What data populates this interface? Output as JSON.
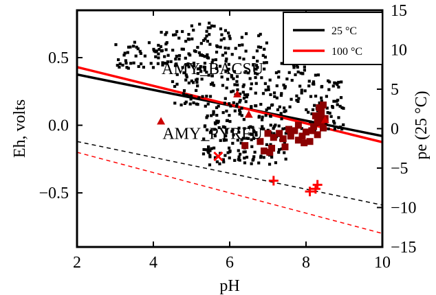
{
  "chart_data": {
    "type": "scatter",
    "xlabel": "pH",
    "ylabel": "Eh, volts",
    "y2label": "pe (25 °C)",
    "xlim": [
      2,
      10
    ],
    "ylim": [
      -0.9,
      0.85
    ],
    "y2lim": [
      -15,
      15
    ],
    "xticks": [
      2,
      4,
      6,
      8,
      10
    ],
    "yticks": [
      -0.5,
      0.0,
      0.5
    ],
    "ytick_labels": [
      "−0.5",
      "0.0",
      "0.5"
    ],
    "y2ticks": [
      -15,
      -10,
      -5,
      0,
      5,
      10,
      15
    ],
    "y2tick_labels": [
      "−15",
      "−10",
      "−5",
      "0",
      "5",
      "10",
      "15"
    ],
    "grid": false,
    "legend_position": "top-right",
    "legend": [
      {
        "label": "25 °C",
        "color": "#000000"
      },
      {
        "label": "100 °C",
        "color": "#ff0000"
      }
    ],
    "lines": [
      {
        "temp": "25 °C",
        "style": "solid",
        "color": "#000000",
        "x": [
          2,
          10
        ],
        "y": [
          0.375,
          -0.08
        ]
      },
      {
        "temp": "100 °C",
        "style": "solid",
        "color": "#ff0000",
        "x": [
          2,
          10
        ],
        "y": [
          0.43,
          -0.125
        ]
      },
      {
        "temp": "25 °C",
        "style": "dashed",
        "color": "#000000",
        "x": [
          2,
          10
        ],
        "y": [
          -0.12,
          -0.59
        ]
      },
      {
        "temp": "100 °C",
        "style": "dashed",
        "color": "#ff0000",
        "x": [
          2,
          10
        ],
        "y": [
          -0.2,
          -0.8
        ]
      }
    ],
    "annotations": [
      {
        "text": "AMY_BACSU",
        "x": 5.55,
        "y": 0.42
      },
      {
        "text": "AMY_PYRFU",
        "x": 5.55,
        "y": -0.06
      }
    ],
    "points": {
      "seed": 4217,
      "background_cluster": {
        "color": "#000000",
        "marker": "square"
      },
      "red_triangles": {
        "color": "#cc0000",
        "x": [
          4.2,
          6.2,
          6.5,
          8.5
        ],
        "y": [
          0.03,
          0.23,
          0.08,
          0.04
        ]
      },
      "red_x": {
        "color": "#ff0000",
        "x": [
          5.7
        ],
        "y": [
          -0.23
        ]
      },
      "red_plus": {
        "color": "#ff0000",
        "x": [
          7.15,
          8.1,
          8.25,
          8.3
        ],
        "y": [
          -0.41,
          -0.49,
          -0.47,
          -0.44
        ]
      },
      "dark_red_squares": {
        "color": "#8b0000",
        "x": [
          6.4,
          6.9,
          7.05,
          7.15,
          7.3,
          7.4,
          7.55,
          7.7,
          7.8,
          7.9,
          8.0,
          8.1,
          8.2,
          8.3,
          8.35,
          8.4,
          8.45,
          8.5,
          8.35,
          8.45,
          8.25,
          8.15,
          7.95,
          7.6,
          7.45,
          6.8,
          7.0,
          7.8,
          8.4,
          8.3,
          7.1
        ],
        "y": [
          -0.15,
          -0.19,
          -0.2,
          -0.09,
          -0.06,
          -0.1,
          -0.03,
          -0.04,
          -0.11,
          -0.08,
          -0.05,
          -0.12,
          -0.01,
          0.02,
          0.06,
          0.1,
          0.15,
          0.05,
          0.13,
          -0.02,
          0.07,
          -0.04,
          -0.13,
          -0.08,
          -0.16,
          -0.12,
          -0.06,
          0.0,
          0.03,
          -0.07,
          -0.17
        ]
      }
    }
  }
}
